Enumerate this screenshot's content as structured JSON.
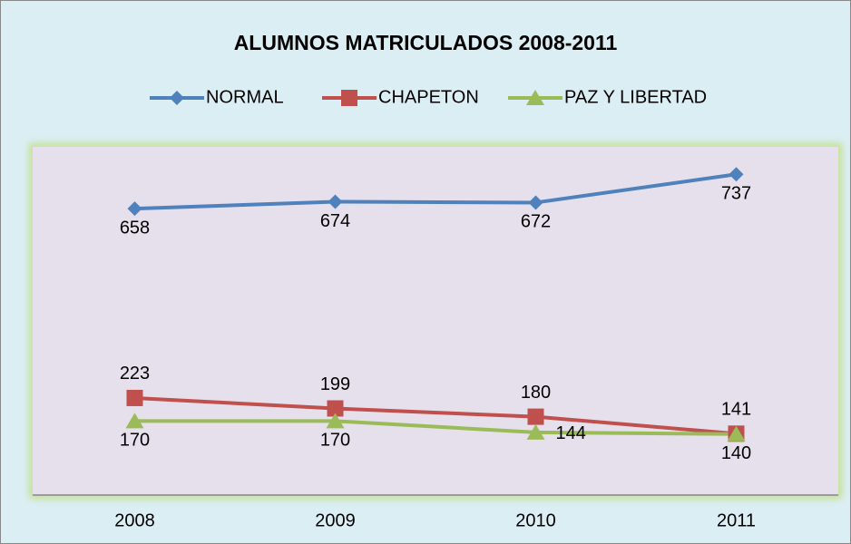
{
  "chart_data": {
    "type": "line",
    "title": "ALUMNOS MATRICULADOS 2008-2011",
    "categories": [
      "2008",
      "2009",
      "2010",
      "2011"
    ],
    "series": [
      {
        "name": "NORMAL",
        "color": "#4f81bd",
        "marker": "diamond",
        "values": [
          658,
          674,
          672,
          737
        ]
      },
      {
        "name": "CHAPETON",
        "color": "#c0504d",
        "marker": "square",
        "values": [
          223,
          199,
          180,
          141
        ]
      },
      {
        "name": "PAZ Y LIBERTAD",
        "color": "#9bbb59",
        "marker": "triangle",
        "values": [
          170,
          170,
          144,
          140
        ]
      }
    ],
    "ylim": [
      0,
      800
    ],
    "legend": "top"
  }
}
